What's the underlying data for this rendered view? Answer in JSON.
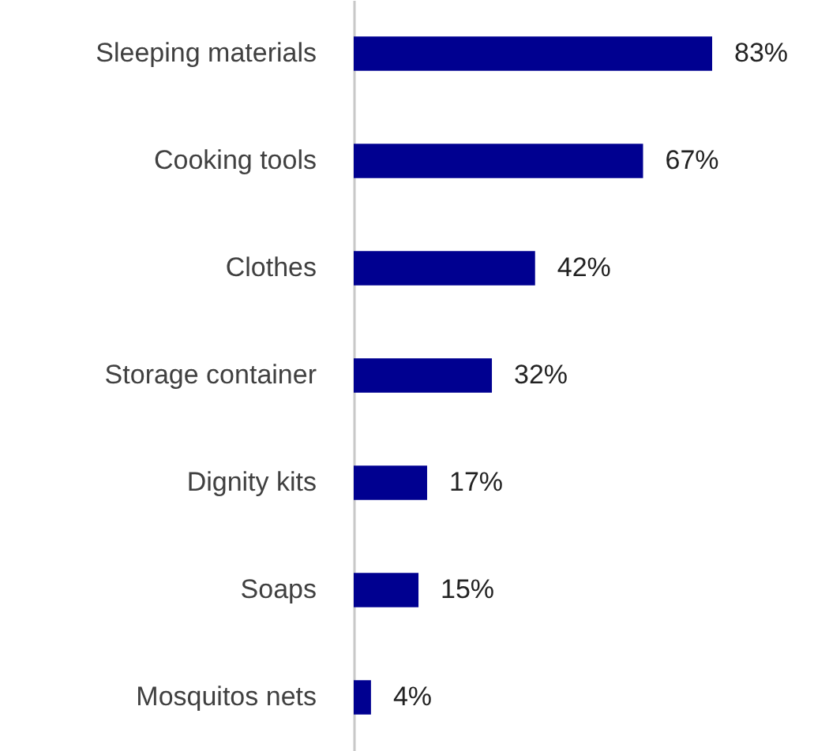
{
  "chart_data": {
    "type": "bar",
    "orientation": "horizontal",
    "categories": [
      "Sleeping materials",
      "Cooking tools",
      "Clothes",
      "Storage container",
      "Dignity kits",
      "Soaps",
      "Mosquitos nets"
    ],
    "values": [
      83,
      67,
      42,
      32,
      17,
      15,
      4
    ],
    "value_labels": [
      "83%",
      "67%",
      "42%",
      "32%",
      "17%",
      "15%",
      "4%"
    ],
    "color": "#000090"
  }
}
